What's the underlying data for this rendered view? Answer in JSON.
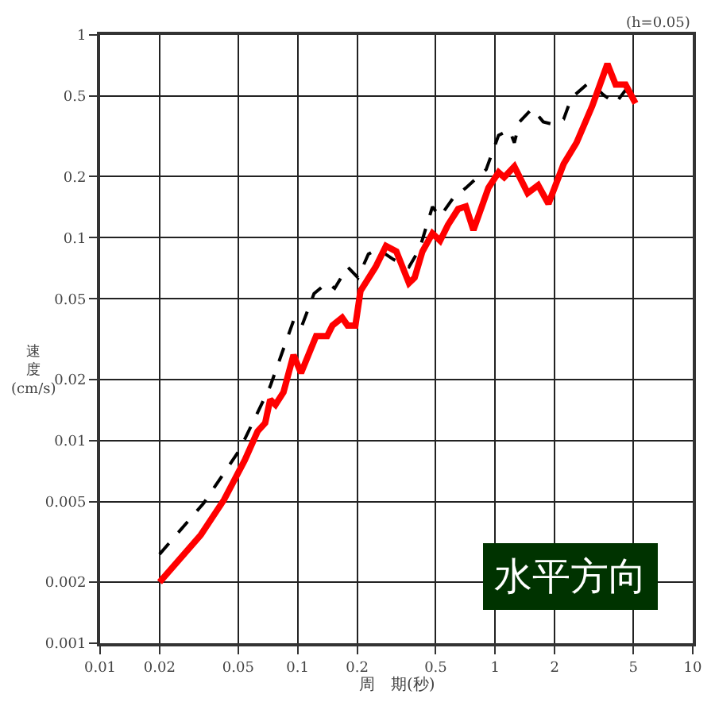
{
  "chart_data": {
    "type": "line",
    "xlabel": "周　期(秒)",
    "ylabel": "速度(cm/s)",
    "log": "xy",
    "grid": true,
    "legend": false,
    "marker": "none",
    "xlim": [
      0.01,
      10
    ],
    "ylim": [
      0.001,
      1
    ],
    "xticks": [
      0.01,
      0.02,
      0.05,
      0.1,
      0.2,
      0.5,
      1,
      2,
      5,
      10
    ],
    "yticks": [
      0.001,
      0.002,
      0.005,
      0.01,
      0.02,
      0.05,
      0.1,
      0.2,
      0.5,
      1
    ],
    "annotations": [
      "(h=0.05)",
      "水平方向"
    ],
    "series": [
      {
        "color": "#000000",
        "line_style": "dashed",
        "x": [
          0.02,
          0.0334,
          0.0509,
          0.0726,
          0.0953,
          0.104,
          0.121,
          0.141,
          0.154,
          0.179,
          0.202,
          0.228,
          0.255,
          0.306,
          0.366,
          0.414,
          0.481,
          0.526,
          0.61,
          0.71,
          0.9,
          1.04,
          1.18,
          1.25,
          1.33,
          1.54,
          1.75,
          1.97,
          2.22,
          2.43,
          3.0,
          3.55,
          4.07,
          4.57,
          5.13
        ],
        "values": [
          0.00275,
          0.0049,
          0.009,
          0.0185,
          0.039,
          0.0358,
          0.053,
          0.06,
          0.0563,
          0.0717,
          0.0635,
          0.083,
          0.088,
          0.078,
          0.0717,
          0.088,
          0.142,
          0.127,
          0.156,
          0.176,
          0.217,
          0.32,
          0.34,
          0.294,
          0.373,
          0.434,
          0.373,
          0.362,
          0.384,
          0.489,
          0.585,
          0.504,
          0.46,
          0.535,
          0.475
        ]
      },
      {
        "color": "#ff0000",
        "line_style": "solid",
        "x": [
          0.02,
          0.0324,
          0.0424,
          0.054,
          0.0627,
          0.0685,
          0.0726,
          0.0772,
          0.0848,
          0.0953,
          0.104,
          0.124,
          0.141,
          0.15,
          0.168,
          0.179,
          0.196,
          0.208,
          0.248,
          0.28,
          0.316,
          0.366,
          0.391,
          0.428,
          0.481,
          0.526,
          0.576,
          0.649,
          0.71,
          0.776,
          0.924,
          1.04,
          1.11,
          1.25,
          1.46,
          1.65,
          1.86,
          2.22,
          2.58,
          3.1,
          3.7,
          4.07,
          4.57,
          5.13
        ],
        "values": [
          0.002,
          0.00343,
          0.0051,
          0.008,
          0.0111,
          0.0122,
          0.0159,
          0.015,
          0.0173,
          0.0264,
          0.0215,
          0.0327,
          0.0327,
          0.0369,
          0.0403,
          0.0369,
          0.0369,
          0.0546,
          0.0717,
          0.091,
          0.0855,
          0.0597,
          0.0635,
          0.0855,
          0.105,
          0.0966,
          0.1155,
          0.1385,
          0.1425,
          0.109,
          0.176,
          0.21,
          0.1985,
          0.2245,
          0.166,
          0.1815,
          0.147,
          0.231,
          0.294,
          0.447,
          0.72,
          0.569,
          0.569,
          0.46
        ]
      }
    ]
  }
}
